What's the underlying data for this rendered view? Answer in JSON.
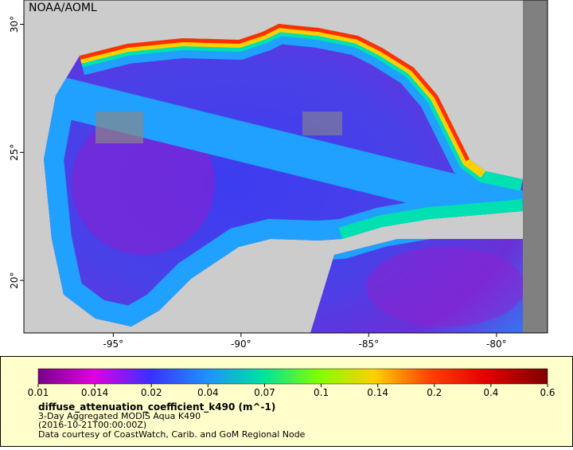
{
  "map": {
    "credit": "NOAA/AOML",
    "lon_range": [
      -98.5,
      -78.0
    ],
    "lat_range": [
      17.95,
      30.95
    ],
    "lon_ticks": [
      {
        "value": -95,
        "label": "-95°"
      },
      {
        "value": -90,
        "label": "-90°"
      },
      {
        "value": -85,
        "label": "-85°"
      },
      {
        "value": -80,
        "label": "-80°"
      }
    ],
    "lat_ticks": [
      {
        "value": 30,
        "label": "30°"
      },
      {
        "value": 25,
        "label": "25°"
      },
      {
        "value": 20,
        "label": "20°"
      }
    ]
  },
  "legend": {
    "ticks": [
      0.01,
      0.014,
      0.02,
      0.04,
      0.07,
      0.1,
      0.14,
      0.2,
      0.4,
      0.6
    ],
    "title": "diffuse_attenuation_coefficient_k490 (m^-1)",
    "lines": [
      "3-Day Aggregated MODIS Aqua K490",
      "(2016-10-21T00:00:00Z)",
      "Data courtesy of CoastWatch, Carib. and GoM Regional Node"
    ]
  }
}
